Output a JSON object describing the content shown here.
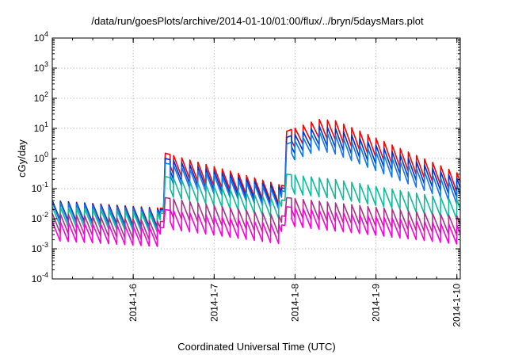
{
  "chart_data": {
    "type": "line",
    "title": "/data/run/goesPlots/archive/2014-01-10/01:00/flux/../bryn/5daysMars.plot",
    "xlabel": "Coordinated Universal Time (UTC)",
    "ylabel": "cGy/day",
    "xlim": [
      "2014-01-05T00:00",
      "2014-01-10T01:00"
    ],
    "ylim": [
      0.0001,
      10000
    ],
    "yscale": "log",
    "grid": true,
    "legend": "none",
    "x_ticks": [
      {
        "x": "2014-01-06T00:00",
        "label": "2014-1-6"
      },
      {
        "x": "2014-01-07T00:00",
        "label": "2014-1-7"
      },
      {
        "x": "2014-01-08T00:00",
        "label": "2014-1-8"
      },
      {
        "x": "2014-01-09T00:00",
        "label": "2014-1-9"
      },
      {
        "x": "2014-01-10T00:00",
        "label": "2014-1-10"
      }
    ],
    "y_ticks": [
      {
        "y": 0.0001,
        "base": "10",
        "exp": "-4"
      },
      {
        "y": 0.001,
        "base": "10",
        "exp": "-3"
      },
      {
        "y": 0.01,
        "base": "10",
        "exp": "-2"
      },
      {
        "y": 0.1,
        "base": "10",
        "exp": "-1"
      },
      {
        "y": 1,
        "base": "10",
        "exp": "0"
      },
      {
        "y": 10,
        "base": "10",
        "exp": "1"
      },
      {
        "y": 100,
        "base": "10",
        "exp": "2"
      },
      {
        "y": 1000,
        "base": "10",
        "exp": "3"
      },
      {
        "y": 10000,
        "base": "10",
        "exp": "4"
      }
    ],
    "series": [
      {
        "color": "#ff0000",
        "points": [
          [
            "2014-01-05T00:00",
            0.04
          ],
          [
            "2014-01-06T09:00",
            0.022
          ],
          [
            "2014-01-06T09:30",
            1.5
          ],
          [
            "2014-01-07T21:00",
            0.12
          ],
          [
            "2014-01-07T21:30",
            8
          ],
          [
            "2014-01-08T07:00",
            20
          ],
          [
            "2014-01-08T12:00",
            18
          ],
          [
            "2014-01-10T01:00",
            0.3
          ]
        ]
      },
      {
        "color": "#0033cc",
        "points": [
          [
            "2014-01-05T00:00",
            0.04
          ],
          [
            "2014-01-06T09:00",
            0.02
          ],
          [
            "2014-01-06T09:30",
            1.0
          ],
          [
            "2014-01-07T21:00",
            0.1
          ],
          [
            "2014-01-07T21:30",
            5
          ],
          [
            "2014-01-08T07:00",
            12
          ],
          [
            "2014-01-08T12:00",
            10
          ],
          [
            "2014-01-10T01:00",
            0.2
          ]
        ]
      },
      {
        "color": "#1177ee",
        "points": [
          [
            "2014-01-05T00:00",
            0.035
          ],
          [
            "2014-01-06T09:00",
            0.018
          ],
          [
            "2014-01-06T09:30",
            0.7
          ],
          [
            "2014-01-07T21:00",
            0.08
          ],
          [
            "2014-01-07T21:30",
            3
          ],
          [
            "2014-01-08T07:00",
            8
          ],
          [
            "2014-01-08T12:00",
            6
          ],
          [
            "2014-01-10T01:00",
            0.12
          ]
        ]
      },
      {
        "color": "#11bb99",
        "points": [
          [
            "2014-01-05T00:00",
            0.025
          ],
          [
            "2014-01-06T09:00",
            0.015
          ],
          [
            "2014-01-06T09:30",
            0.25
          ],
          [
            "2014-01-07T21:00",
            0.04
          ],
          [
            "2014-01-07T21:30",
            0.3
          ],
          [
            "2014-01-08T12:00",
            0.2
          ],
          [
            "2014-01-10T01:00",
            0.04
          ]
        ]
      },
      {
        "color": "#aa3388",
        "points": [
          [
            "2014-01-05T00:00",
            0.015
          ],
          [
            "2014-01-06T09:00",
            0.008
          ],
          [
            "2014-01-06T09:30",
            0.05
          ],
          [
            "2014-01-07T21:00",
            0.012
          ],
          [
            "2014-01-07T21:30",
            0.05
          ],
          [
            "2014-01-10T01:00",
            0.012
          ]
        ]
      },
      {
        "color": "#ff00dd",
        "points": [
          [
            "2014-01-05T00:00",
            0.008
          ],
          [
            "2014-01-06T09:00",
            0.005
          ],
          [
            "2014-01-06T09:30",
            0.02
          ],
          [
            "2014-01-07T21:00",
            0.006
          ],
          [
            "2014-01-07T21:30",
            0.025
          ],
          [
            "2014-01-10T01:00",
            0.006
          ]
        ]
      }
    ]
  }
}
